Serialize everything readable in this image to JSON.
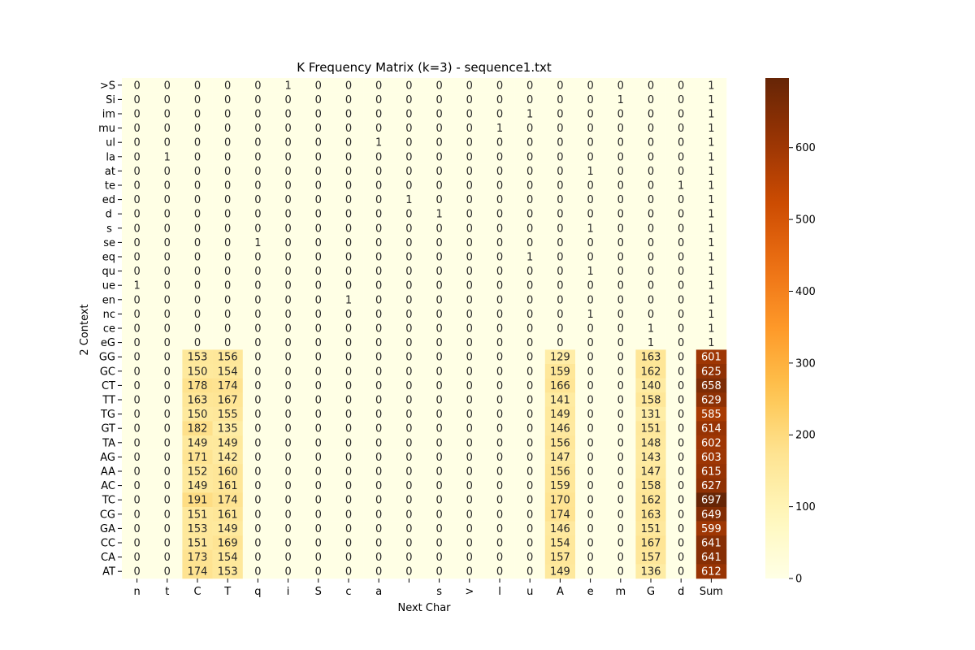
{
  "chart_data": {
    "type": "heatmap",
    "title": "K Frequency Matrix (k=3) - sequence1.txt",
    "xlabel": "Next Char",
    "ylabel": "2 Context",
    "columns": [
      "n",
      "t",
      "C",
      "T",
      "q",
      "i",
      "S",
      "c",
      "a",
      " ",
      "s",
      ">",
      "l",
      "u",
      "A",
      "e",
      "m",
      "G",
      "d",
      "Sum"
    ],
    "rows": [
      ">S",
      "Si",
      "im",
      "mu",
      "ul",
      "la",
      "at",
      "te",
      "ed",
      "d ",
      "s ",
      "se",
      "eq",
      "qu",
      "ue",
      "en",
      "nc",
      "ce",
      "eG",
      "GG",
      "GC",
      "CT",
      "TT",
      "TG",
      "GT",
      "TA",
      "AG",
      "AA",
      "AC",
      "TC",
      "CG",
      "GA",
      "CC",
      "CA",
      "AT"
    ],
    "values": [
      [
        0,
        0,
        0,
        0,
        0,
        1,
        0,
        0,
        0,
        0,
        0,
        0,
        0,
        0,
        0,
        0,
        0,
        0,
        0,
        1
      ],
      [
        0,
        0,
        0,
        0,
        0,
        0,
        0,
        0,
        0,
        0,
        0,
        0,
        0,
        0,
        0,
        0,
        1,
        0,
        0,
        1
      ],
      [
        0,
        0,
        0,
        0,
        0,
        0,
        0,
        0,
        0,
        0,
        0,
        0,
        0,
        1,
        0,
        0,
        0,
        0,
        0,
        1
      ],
      [
        0,
        0,
        0,
        0,
        0,
        0,
        0,
        0,
        0,
        0,
        0,
        0,
        1,
        0,
        0,
        0,
        0,
        0,
        0,
        1
      ],
      [
        0,
        0,
        0,
        0,
        0,
        0,
        0,
        0,
        1,
        0,
        0,
        0,
        0,
        0,
        0,
        0,
        0,
        0,
        0,
        1
      ],
      [
        0,
        1,
        0,
        0,
        0,
        0,
        0,
        0,
        0,
        0,
        0,
        0,
        0,
        0,
        0,
        0,
        0,
        0,
        0,
        1
      ],
      [
        0,
        0,
        0,
        0,
        0,
        0,
        0,
        0,
        0,
        0,
        0,
        0,
        0,
        0,
        0,
        1,
        0,
        0,
        0,
        1
      ],
      [
        0,
        0,
        0,
        0,
        0,
        0,
        0,
        0,
        0,
        0,
        0,
        0,
        0,
        0,
        0,
        0,
        0,
        0,
        1,
        1
      ],
      [
        0,
        0,
        0,
        0,
        0,
        0,
        0,
        0,
        0,
        1,
        0,
        0,
        0,
        0,
        0,
        0,
        0,
        0,
        0,
        1
      ],
      [
        0,
        0,
        0,
        0,
        0,
        0,
        0,
        0,
        0,
        0,
        1,
        0,
        0,
        0,
        0,
        0,
        0,
        0,
        0,
        1
      ],
      [
        0,
        0,
        0,
        0,
        0,
        0,
        0,
        0,
        0,
        0,
        0,
        0,
        0,
        0,
        0,
        1,
        0,
        0,
        0,
        1
      ],
      [
        0,
        0,
        0,
        0,
        1,
        0,
        0,
        0,
        0,
        0,
        0,
        0,
        0,
        0,
        0,
        0,
        0,
        0,
        0,
        1
      ],
      [
        0,
        0,
        0,
        0,
        0,
        0,
        0,
        0,
        0,
        0,
        0,
        0,
        0,
        1,
        0,
        0,
        0,
        0,
        0,
        1
      ],
      [
        0,
        0,
        0,
        0,
        0,
        0,
        0,
        0,
        0,
        0,
        0,
        0,
        0,
        0,
        0,
        1,
        0,
        0,
        0,
        1
      ],
      [
        1,
        0,
        0,
        0,
        0,
        0,
        0,
        0,
        0,
        0,
        0,
        0,
        0,
        0,
        0,
        0,
        0,
        0,
        0,
        1
      ],
      [
        0,
        0,
        0,
        0,
        0,
        0,
        0,
        1,
        0,
        0,
        0,
        0,
        0,
        0,
        0,
        0,
        0,
        0,
        0,
        1
      ],
      [
        0,
        0,
        0,
        0,
        0,
        0,
        0,
        0,
        0,
        0,
        0,
        0,
        0,
        0,
        0,
        1,
        0,
        0,
        0,
        1
      ],
      [
        0,
        0,
        0,
        0,
        0,
        0,
        0,
        0,
        0,
        0,
        0,
        0,
        0,
        0,
        0,
        0,
        0,
        1,
        0,
        1
      ],
      [
        0,
        0,
        0,
        0,
        0,
        0,
        0,
        0,
        0,
        0,
        0,
        0,
        0,
        0,
        0,
        0,
        0,
        1,
        0,
        1
      ],
      [
        0,
        0,
        153,
        156,
        0,
        0,
        0,
        0,
        0,
        0,
        0,
        0,
        0,
        0,
        129,
        0,
        0,
        163,
        0,
        601
      ],
      [
        0,
        0,
        150,
        154,
        0,
        0,
        0,
        0,
        0,
        0,
        0,
        0,
        0,
        0,
        159,
        0,
        0,
        162,
        0,
        625
      ],
      [
        0,
        0,
        178,
        174,
        0,
        0,
        0,
        0,
        0,
        0,
        0,
        0,
        0,
        0,
        166,
        0,
        0,
        140,
        0,
        658
      ],
      [
        0,
        0,
        163,
        167,
        0,
        0,
        0,
        0,
        0,
        0,
        0,
        0,
        0,
        0,
        141,
        0,
        0,
        158,
        0,
        629
      ],
      [
        0,
        0,
        150,
        155,
        0,
        0,
        0,
        0,
        0,
        0,
        0,
        0,
        0,
        0,
        149,
        0,
        0,
        131,
        0,
        585
      ],
      [
        0,
        0,
        182,
        135,
        0,
        0,
        0,
        0,
        0,
        0,
        0,
        0,
        0,
        0,
        146,
        0,
        0,
        151,
        0,
        614
      ],
      [
        0,
        0,
        149,
        149,
        0,
        0,
        0,
        0,
        0,
        0,
        0,
        0,
        0,
        0,
        156,
        0,
        0,
        148,
        0,
        602
      ],
      [
        0,
        0,
        171,
        142,
        0,
        0,
        0,
        0,
        0,
        0,
        0,
        0,
        0,
        0,
        147,
        0,
        0,
        143,
        0,
        603
      ],
      [
        0,
        0,
        152,
        160,
        0,
        0,
        0,
        0,
        0,
        0,
        0,
        0,
        0,
        0,
        156,
        0,
        0,
        147,
        0,
        615
      ],
      [
        0,
        0,
        149,
        161,
        0,
        0,
        0,
        0,
        0,
        0,
        0,
        0,
        0,
        0,
        159,
        0,
        0,
        158,
        0,
        627
      ],
      [
        0,
        0,
        191,
        174,
        0,
        0,
        0,
        0,
        0,
        0,
        0,
        0,
        0,
        0,
        170,
        0,
        0,
        162,
        0,
        697
      ],
      [
        0,
        0,
        151,
        161,
        0,
        0,
        0,
        0,
        0,
        0,
        0,
        0,
        0,
        0,
        174,
        0,
        0,
        163,
        0,
        649
      ],
      [
        0,
        0,
        153,
        149,
        0,
        0,
        0,
        0,
        0,
        0,
        0,
        0,
        0,
        0,
        146,
        0,
        0,
        151,
        0,
        599
      ],
      [
        0,
        0,
        151,
        169,
        0,
        0,
        0,
        0,
        0,
        0,
        0,
        0,
        0,
        0,
        154,
        0,
        0,
        167,
        0,
        641
      ],
      [
        0,
        0,
        173,
        154,
        0,
        0,
        0,
        0,
        0,
        0,
        0,
        0,
        0,
        0,
        157,
        0,
        0,
        157,
        0,
        641
      ],
      [
        0,
        0,
        174,
        153,
        0,
        0,
        0,
        0,
        0,
        0,
        0,
        0,
        0,
        0,
        149,
        0,
        0,
        136,
        0,
        612
      ]
    ],
    "colorbar": {
      "colormap": "YlOrBr",
      "range": [
        0,
        697
      ],
      "ticks": [
        0,
        100,
        200,
        300,
        400,
        500,
        600
      ]
    },
    "grid": false,
    "legend": "colorbar-right"
  }
}
